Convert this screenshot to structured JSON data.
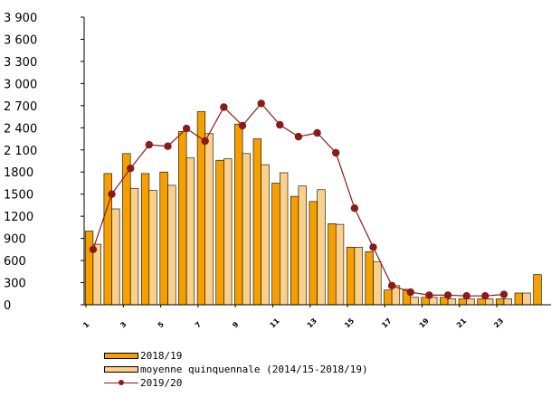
{
  "chart_data": {
    "type": "bar",
    "title": "",
    "xlabel": "",
    "ylabel": "",
    "ylim": [
      0,
      3900
    ],
    "yticks": [
      0,
      300,
      600,
      900,
      1200,
      1500,
      1800,
      2100,
      2400,
      2700,
      3000,
      3300,
      3600,
      3900
    ],
    "ytick_labels": [
      "0",
      "300",
      "600",
      "900",
      "1200",
      "1500",
      "1800",
      "2 100",
      "2 400",
      "2 700",
      "3 000",
      "3 300",
      "3 600",
      "3 900"
    ],
    "grid": false,
    "legend_position": "bottom",
    "categories": [
      "1",
      "2",
      "3",
      "4",
      "5",
      "6",
      "7",
      "8",
      "9",
      "10",
      "11",
      "12",
      "13",
      "14",
      "15",
      "16",
      "17",
      "18",
      "19",
      "20",
      "21",
      "22",
      "23",
      "24",
      "25"
    ],
    "xtick_positions": [
      1,
      3,
      5,
      7,
      9,
      11,
      13,
      15,
      17,
      19,
      21,
      23
    ],
    "series": [
      {
        "name": "2018/19",
        "type": "bar",
        "color": "#f5a000",
        "values": [
          1000,
          1780,
          2050,
          1780,
          1800,
          2350,
          2620,
          1960,
          2450,
          2250,
          1650,
          1470,
          1400,
          1100,
          780,
          720,
          200,
          210,
          100,
          100,
          80,
          80,
          80,
          160,
          410
        ]
      },
      {
        "name": "moyenne quinquennale (2014/15-2018/19)",
        "type": "bar",
        "color": "#fbd08a",
        "values": [
          820,
          1300,
          1580,
          1550,
          1620,
          1990,
          2320,
          1980,
          2050,
          1900,
          1790,
          1610,
          1560,
          1090,
          780,
          580,
          260,
          100,
          100,
          80,
          80,
          80,
          80,
          160,
          0
        ]
      },
      {
        "name": "2019/20",
        "type": "line",
        "color": "#8b1a1a",
        "values": [
          750,
          1500,
          1850,
          2170,
          2150,
          2390,
          2220,
          2680,
          2430,
          2730,
          2440,
          2280,
          2330,
          2060,
          1310,
          780,
          260,
          170,
          130,
          130,
          120,
          120,
          140,
          null,
          null
        ]
      }
    ]
  },
  "legend": {
    "s1": "2018/19",
    "s2": "moyenne quinquennale (2014/15-2018/19)",
    "s3": "2019/20"
  }
}
